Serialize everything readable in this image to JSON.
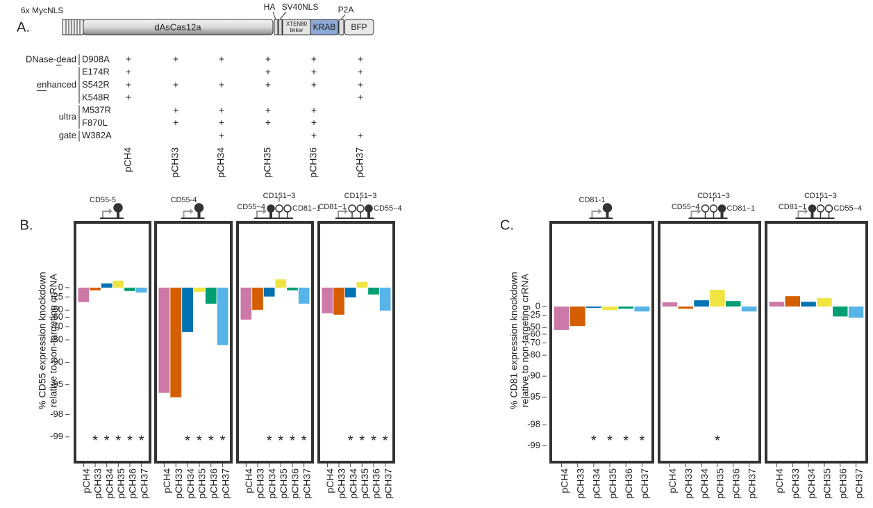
{
  "panel_a": {
    "label": "A.",
    "construct": {
      "myc_nls": "6x MycNLS",
      "cas": "dAsCas12a",
      "ha": "HA",
      "sv40": "SV40NLS",
      "linker": [
        "XTEN80",
        "linker"
      ],
      "krab": "KRAB",
      "p2a": "P2A",
      "bfp": "BFP"
    },
    "table": {
      "columns": [
        "pCH4",
        "pCH33",
        "pCH34",
        "pCH35",
        "pCH36",
        "pCH37"
      ],
      "groups": [
        {
          "label": "DNase-dead",
          "rows": [
            {
              "mutation": "D908A",
              "marks": [
                "+",
                "+",
                "+",
                "+",
                "+",
                "+"
              ]
            }
          ]
        },
        {
          "label": "enhanced",
          "rows": [
            {
              "mutation": "E174R",
              "marks": [
                "+",
                null,
                null,
                "+",
                "+",
                "+"
              ]
            },
            {
              "mutation": "S542R",
              "marks": [
                "+",
                "+",
                "+",
                "+",
                "+",
                "+"
              ]
            },
            {
              "mutation": "K548R",
              "marks": [
                "+",
                null,
                null,
                null,
                null,
                "+"
              ]
            }
          ]
        },
        {
          "label": "ultra",
          "rows": [
            {
              "mutation": "M537R",
              "marks": [
                null,
                "+",
                "+",
                "+",
                "+",
                null
              ]
            },
            {
              "mutation": "F870L",
              "marks": [
                null,
                "+",
                "+",
                "+",
                "+",
                null
              ]
            }
          ]
        },
        {
          "label": "gate",
          "rows": [
            {
              "mutation": "W382A",
              "marks": [
                null,
                null,
                "+",
                null,
                "+",
                "+"
              ]
            }
          ]
        }
      ]
    }
  },
  "chart_data": [
    {
      "type": "bar",
      "title": "B.",
      "ylabel": [
        "% CD55 expression knockdown",
        "relative to non-targeting crRNA"
      ],
      "yscale": "neg-log",
      "ylim": [
        648,
        -99.54
      ],
      "yticks": [
        0,
        -25,
        -50,
        -60,
        -70,
        -80,
        -90,
        -95,
        -98,
        -99
      ],
      "categories": [
        "pCH4",
        "pCH33",
        "pCH34",
        "pCH35",
        "pCH36",
        "pCH37"
      ],
      "colors": [
        "#cc79a7",
        "#d55e00",
        "#0072b2",
        "#f0e442",
        "#009e73",
        "#56b4e9"
      ],
      "facets": [
        {
          "guides": [
            "CD55-5"
          ],
          "values": [
            -36,
            -8,
            14,
            24,
            -10,
            -14
          ],
          "annotations": [
            null,
            "*",
            "*",
            "*",
            "*",
            "*"
          ]
        },
        {
          "guides": [
            "CD55-4"
          ],
          "values": [
            -96.1,
            -96.6,
            -74.6,
            -12,
            -39,
            -83
          ],
          "annotations": [
            null,
            null,
            "*",
            "*",
            "*",
            "*"
          ]
        },
        {
          "guides": [
            "CD55−4",
            "CD151−3",
            "CD81−1"
          ],
          "values": [
            -62.7,
            -49.6,
            -24,
            29,
            -8,
            -39
          ],
          "annotations": [
            null,
            null,
            "*",
            "*",
            "*",
            "*"
          ]
        },
        {
          "guides": [
            "CD81−1",
            "CD151−3",
            "CD55−4"
          ],
          "values": [
            -54.7,
            -56.6,
            -26,
            19,
            -19,
            -50.7
          ],
          "annotations": [
            null,
            null,
            "*",
            "*",
            "*",
            "*"
          ]
        }
      ]
    },
    {
      "type": "bar",
      "title": "C.",
      "ylabel": [
        "% CD81 expression knockdown",
        "relative to non-targeting crRNA"
      ],
      "yscale": "neg-log",
      "ylim": [
        1522,
        -99.42
      ],
      "yticks": [
        0,
        -25,
        -50,
        -60,
        -70,
        -80,
        -90,
        -95,
        -98,
        -99
      ],
      "categories": [
        "pCH4",
        "pCH33",
        "pCH34",
        "pCH35",
        "pCH36",
        "pCH37"
      ],
      "colors": [
        "#cc79a7",
        "#d55e00",
        "#0072b2",
        "#f0e442",
        "#009e73",
        "#56b4e9"
      ],
      "facets": [
        {
          "guides": [
            "CD81-1"
          ],
          "values": [
            -54,
            -47.5,
            -4.5,
            -11,
            -7,
            -15
          ],
          "annotations": [
            null,
            null,
            "*",
            "*",
            "*",
            "*"
          ]
        },
        {
          "guides": [
            "CD55−4",
            "CD151−3",
            "CD81−1"
          ],
          "values": [
            15,
            -7,
            23,
            74,
            20,
            -15
          ],
          "annotations": [
            null,
            null,
            null,
            "*",
            null,
            null
          ]
        },
        {
          "guides": [
            "CD81−1",
            "CD151−3",
            "CD55−4"
          ],
          "values": [
            17,
            41,
            17,
            32,
            -28,
            -31
          ],
          "annotations": [
            null,
            null,
            null,
            null,
            null,
            null
          ]
        }
      ]
    }
  ]
}
